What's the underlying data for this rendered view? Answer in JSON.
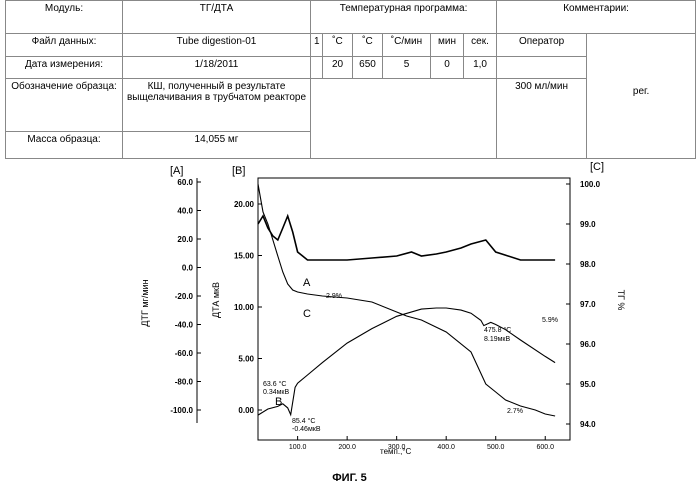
{
  "table": {
    "header": {
      "module_label": "Модуль:",
      "module_value": "ТГ/ДТА",
      "program_label": "Температурная программа:",
      "comments_label": "Комментарии:"
    },
    "row2": {
      "datafile_label": "Файл данных:",
      "datafile_value": "Tube digestion-01",
      "step_label": "1",
      "col_c1": "˚C",
      "col_c2": "˚C",
      "col_rate": "˚C/мин",
      "col_min": "мин",
      "col_sec": "сек.",
      "operator_label": "Оператор"
    },
    "row3": {
      "date_label": "Дата измерения:",
      "date_value": "1/18/2011",
      "start_temp": "20",
      "end_temp": "650",
      "rate": "5",
      "minutes": "0",
      "seconds": "1,0"
    },
    "row4": {
      "sample_label": "Обозначение образца:",
      "sample_value": "КШ, полученный в результате выщелачивания в трубчатом реакторе",
      "flow": "300 мл/мин",
      "reg": "рег."
    },
    "row5": {
      "mass_label": "Масса образца:",
      "mass_value": "14,055 мг"
    }
  },
  "chart_data": {
    "type": "line",
    "axis_labels": {
      "left_a": "ДТГ мг/мин",
      "left_b": "ДТА мкВ",
      "right": "ТГ %",
      "x": "темп.,°C"
    },
    "panel_tags": {
      "a": "[A]",
      "b": "[B]",
      "c": "[C]"
    },
    "axis_a_ticks": [
      "60.0",
      "40.0",
      "20.0",
      "0.0",
      "-20.0",
      "-40.0",
      "-60.0",
      "-80.0",
      "-100.0"
    ],
    "axis_b_ticks": [
      "20.00",
      "15.00",
      "10.00",
      "5.00",
      "0.00"
    ],
    "axis_c_ticks": [
      "100.0",
      "99.0",
      "98.0",
      "97.0",
      "96.0",
      "95.0",
      "94.0"
    ],
    "x_ticks": [
      "100.0",
      "200.0",
      "300.0",
      "400.0",
      "500.0",
      "600.0"
    ],
    "xlim": [
      20,
      650
    ],
    "curve_labels": {
      "a": "A",
      "b": "B",
      "c": "C"
    },
    "annotations": {
      "tg_step1": "2.9%",
      "tg_step2": "5.9%",
      "tg_step3": "2.7%",
      "peak1_t": "63.6 °C",
      "peak1_v": "0.34мкВ",
      "peak2_t": "85.4 °C",
      "peak2_v": "-0.46мкВ",
      "peak3_t": "475.8 °C",
      "peak3_v": "8.19мкВ"
    },
    "series": [
      {
        "name": "A",
        "x": [
          20,
          30,
          40,
          50,
          60,
          70,
          80,
          90,
          100,
          110,
          120,
          140,
          160,
          200,
          250,
          300,
          330,
          350,
          380,
          400,
          430,
          450,
          480,
          500,
          550,
          600,
          620
        ],
        "y": [
          99.0,
          99.2,
          98.9,
          98.7,
          98.6,
          98.9,
          99.2,
          98.8,
          98.3,
          98.2,
          98.1,
          98.1,
          98.1,
          98.1,
          98.15,
          98.2,
          98.3,
          98.2,
          98.25,
          98.3,
          98.4,
          98.5,
          98.6,
          98.3,
          98.1,
          98.1,
          98.1
        ]
      },
      {
        "name": "B",
        "x": [
          20,
          40,
          60,
          70,
          80,
          86,
          95,
          100,
          120,
          150,
          200,
          250,
          300,
          350,
          380,
          400,
          430,
          450,
          470,
          476,
          490,
          500,
          520,
          550,
          600,
          620
        ],
        "y": [
          -0.5,
          0.1,
          0.35,
          0.6,
          0.2,
          -0.46,
          2.2,
          2.6,
          3.4,
          4.6,
          6.5,
          7.9,
          9.1,
          9.8,
          9.9,
          9.9,
          9.7,
          9.4,
          8.7,
          8.19,
          8.5,
          8.3,
          7.8,
          6.8,
          5.2,
          4.6
        ]
      },
      {
        "name": "C",
        "x": [
          20,
          30,
          40,
          50,
          60,
          70,
          80,
          90,
          100,
          120,
          150,
          200,
          250,
          300,
          320,
          350,
          400,
          450,
          480,
          500,
          520,
          550,
          580,
          600,
          620
        ],
        "y": [
          100.0,
          99.3,
          99.0,
          98.6,
          98.2,
          97.8,
          97.5,
          97.35,
          97.3,
          97.25,
          97.2,
          97.15,
          97.05,
          96.8,
          96.7,
          96.6,
          96.3,
          95.8,
          95.0,
          94.8,
          94.6,
          94.45,
          94.35,
          94.25,
          94.2
        ]
      }
    ]
  },
  "caption": "ФИГ. 5"
}
